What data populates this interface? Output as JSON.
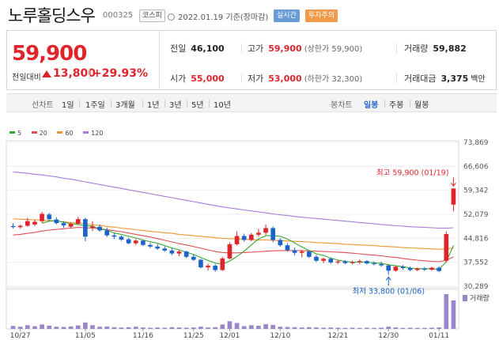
{
  "header": {
    "stock_name": "노루홀딩스우",
    "stock_code": "000325",
    "market": "코스피",
    "date": "2022.01.19 기준(장마감)",
    "realtime_badge": "실시간",
    "warning_badge": "투자주의"
  },
  "summary": {
    "price": "59,900",
    "compare_label": "전일대비",
    "change": "13,800",
    "change_pct": "+29.93%",
    "change_direction": "up",
    "prev_close_label": "전일",
    "prev_close": "46,100",
    "open_label": "시가",
    "open": "55,000",
    "high_label": "고가",
    "high": "59,900",
    "high_limit": "(상한가 59,900)",
    "low_label": "저가",
    "low": "53,000",
    "low_limit": "(하한가 32,300)",
    "volume_label": "거래량",
    "volume": "59,882",
    "amount_label": "거래대금",
    "amount": "3,375",
    "amount_unit": "백만"
  },
  "periods": {
    "line_label": "선차트",
    "line_items": [
      "1일",
      "1주일",
      "3개월",
      "1년",
      "3년",
      "5년",
      "10년"
    ],
    "candle_label": "봉차트",
    "candle_items": [
      "일봉",
      "주봉",
      "월봉"
    ],
    "active_candle": "일봉"
  },
  "colors": {
    "up": "#e0242b",
    "down": "#1c63c7",
    "ma5": "#33a833",
    "ma20": "#e05050",
    "ma60": "#f0962e",
    "ma120": "#a77bd6",
    "volume": "#9a87c9"
  },
  "chart_data": {
    "type": "candlestick",
    "legend": [
      {
        "name": "5",
        "color": "#33a833"
      },
      {
        "name": "20",
        "color": "#e05050"
      },
      {
        "name": "60",
        "color": "#f0962e"
      },
      {
        "name": "120",
        "color": "#a77bd6"
      }
    ],
    "y_ticks": [
      "73,869",
      "66,606",
      "59,342",
      "52,079",
      "44,816",
      "37,552",
      "30,289"
    ],
    "ylim": [
      30289,
      73869
    ],
    "x_ticks": [
      "10/27",
      "11/05",
      "11/16",
      "11/25",
      "12/01",
      "12/10",
      "12/21",
      "12/30",
      "01/11"
    ],
    "volume_label": "거래량",
    "high_annotation": "최고 59,900 (01/19)",
    "low_annotation": "최저 33,800 (01/06)",
    "candles": [
      [
        48500,
        49400,
        47800,
        48200
      ],
      [
        48200,
        48900,
        47700,
        48600
      ],
      [
        48600,
        51000,
        48300,
        50000
      ],
      [
        49000,
        50500,
        48500,
        49800
      ],
      [
        50000,
        52800,
        49500,
        52200
      ],
      [
        52000,
        52500,
        50000,
        50600
      ],
      [
        50500,
        51200,
        49000,
        49400
      ],
      [
        49400,
        50000,
        48000,
        48700
      ],
      [
        48300,
        49600,
        47900,
        49200
      ],
      [
        49200,
        51300,
        48800,
        50600
      ],
      [
        50600,
        51000,
        43900,
        45300
      ],
      [
        48000,
        50000,
        47000,
        48400
      ],
      [
        48300,
        49000,
        46800,
        47200
      ],
      [
        47200,
        48000,
        45200,
        45700
      ],
      [
        45700,
        46300,
        44600,
        45300
      ],
      [
        45300,
        45600,
        44000,
        44400
      ],
      [
        44500,
        45000,
        43000,
        43300
      ],
      [
        43300,
        44600,
        42700,
        44100
      ],
      [
        44100,
        44300,
        42500,
        42800
      ],
      [
        42800,
        43500,
        41800,
        42300
      ],
      [
        42300,
        43000,
        41300,
        41700
      ],
      [
        41700,
        42400,
        40700,
        41100
      ],
      [
        41100,
        41800,
        39700,
        40200
      ],
      [
        40200,
        41300,
        39400,
        40800
      ],
      [
        40800,
        41000,
        38800,
        39200
      ],
      [
        39200,
        39900,
        37900,
        38300
      ],
      [
        38300,
        38600,
        35700,
        36000
      ],
      [
        36000,
        37100,
        35000,
        36500
      ],
      [
        36500,
        37000,
        34700,
        35200
      ],
      [
        35200,
        39200,
        34900,
        38700
      ],
      [
        38700,
        43600,
        38400,
        43000
      ],
      [
        43000,
        46900,
        42600,
        45500
      ],
      [
        45500,
        46200,
        43800,
        44300
      ],
      [
        44300,
        46400,
        43900,
        45900
      ],
      [
        45900,
        47700,
        45200,
        46500
      ],
      [
        46500,
        49000,
        45800,
        47900
      ],
      [
        47900,
        48400,
        43600,
        44300
      ],
      [
        44300,
        44800,
        42200,
        42700
      ],
      [
        42700,
        43300,
        40800,
        41200
      ],
      [
        41200,
        42000,
        39600,
        40400
      ],
      [
        40400,
        41300,
        39000,
        40800
      ],
      [
        40800,
        41200,
        38800,
        39200
      ],
      [
        39200,
        39800,
        37600,
        38000
      ],
      [
        38000,
        39000,
        37300,
        38600
      ],
      [
        38600,
        39000,
        37100,
        37500
      ],
      [
        37500,
        38300,
        37000,
        37800
      ],
      [
        37800,
        38200,
        37000,
        37300
      ],
      [
        37300,
        38000,
        36900,
        37600
      ],
      [
        37600,
        38400,
        37000,
        37900
      ],
      [
        37900,
        38200,
        36800,
        37200
      ],
      [
        37200,
        37800,
        36600,
        37000
      ],
      [
        37000,
        37700,
        36200,
        36600
      ],
      [
        36600,
        36900,
        33800,
        35000
      ],
      [
        35000,
        36500,
        34700,
        36200
      ],
      [
        36200,
        36700,
        35300,
        35800
      ],
      [
        35800,
        36300,
        34800,
        35200
      ],
      [
        35200,
        36000,
        34800,
        35600
      ],
      [
        35600,
        36100,
        34900,
        35300
      ],
      [
        35300,
        36200,
        35000,
        35900
      ],
      [
        35900,
        36300,
        34500,
        34900
      ],
      [
        38000,
        46900,
        37500,
        46100
      ],
      [
        55000,
        59900,
        53000,
        59900
      ]
    ],
    "ma": {
      "ma5": [
        null,
        null,
        null,
        null,
        49400,
        50000,
        50100,
        49700,
        49200,
        49000,
        48600,
        48500,
        47600,
        47300,
        46400,
        46000,
        45400,
        44900,
        44300,
        43800,
        43300,
        42600,
        41900,
        41300,
        40600,
        39900,
        39000,
        38100,
        37300,
        37000,
        37900,
        39300,
        40900,
        42800,
        44600,
        45600,
        45600,
        45400,
        44600,
        43400,
        42200,
        41100,
        40100,
        39600,
        38800,
        38200,
        37800,
        37600,
        37600,
        37600,
        37400,
        37200,
        36800,
        36500,
        36200,
        35800,
        35600,
        35600,
        35600,
        35400,
        37700,
        42600
      ],
      "ma20": [
        45800,
        46000,
        46300,
        46600,
        47000,
        47300,
        47500,
        47700,
        47900,
        48100,
        48000,
        47900,
        47700,
        47400,
        47100,
        46800,
        46400,
        46000,
        45600,
        45200,
        44700,
        44200,
        43700,
        43200,
        42800,
        42300,
        41800,
        41300,
        40800,
        40500,
        40400,
        40400,
        40500,
        40600,
        40700,
        40900,
        41000,
        41100,
        41100,
        41100,
        41100,
        41000,
        40900,
        40800,
        40700,
        40600,
        40500,
        40300,
        40100,
        39900,
        39700,
        39500,
        39200,
        39000,
        38700,
        38400,
        38200,
        38000,
        37800,
        37700,
        38100,
        39200
      ],
      "ma60": [
        50700,
        50600,
        50500,
        50400,
        50300,
        50200,
        50000,
        49800,
        49600,
        49400,
        49200,
        48900,
        48700,
        48400,
        48200,
        47900,
        47700,
        47400,
        47200,
        46900,
        46700,
        46500,
        46300,
        46000,
        45800,
        45600,
        45400,
        45200,
        45000,
        44800,
        44700,
        44600,
        44500,
        44400,
        44300,
        44300,
        44200,
        44100,
        44000,
        43900,
        43800,
        43700,
        43500,
        43400,
        43300,
        43200,
        43000,
        42900,
        42800,
        42700,
        42600,
        42400,
        42300,
        42200,
        42000,
        41900,
        41800,
        41700,
        41600,
        41500,
        41600,
        41900
      ],
      "ma120": [
        64900,
        64700,
        64500,
        64200,
        64000,
        63700,
        63400,
        63000,
        62700,
        62300,
        61900,
        61500,
        61100,
        60700,
        60300,
        59900,
        59500,
        59100,
        58700,
        58300,
        57900,
        57500,
        57100,
        56700,
        56300,
        55900,
        55500,
        55100,
        54700,
        54300,
        54000,
        53700,
        53400,
        53100,
        52800,
        52500,
        52200,
        51900,
        51700,
        51400,
        51200,
        51000,
        50800,
        50600,
        50400,
        50200,
        50000,
        49800,
        49600,
        49400,
        49200,
        49000,
        48800,
        48600,
        48500,
        48300,
        48200,
        48100,
        48000,
        47900,
        47900,
        48000
      ]
    },
    "volume": [
      1200,
      900,
      1500,
      1100,
      1800,
      1300,
      900,
      800,
      1000,
      1400,
      2600,
      1500,
      900,
      1000,
      700,
      600,
      700,
      900,
      600,
      500,
      600,
      500,
      700,
      600,
      500,
      600,
      900,
      600,
      700,
      1800,
      3100,
      2400,
      1100,
      1500,
      1300,
      1900,
      1600,
      900,
      800,
      700,
      600,
      700,
      600,
      500,
      600,
      500,
      400,
      500,
      400,
      500,
      400,
      500,
      900,
      600,
      400,
      500,
      400,
      400,
      500,
      600,
      14000,
      11500
    ]
  }
}
